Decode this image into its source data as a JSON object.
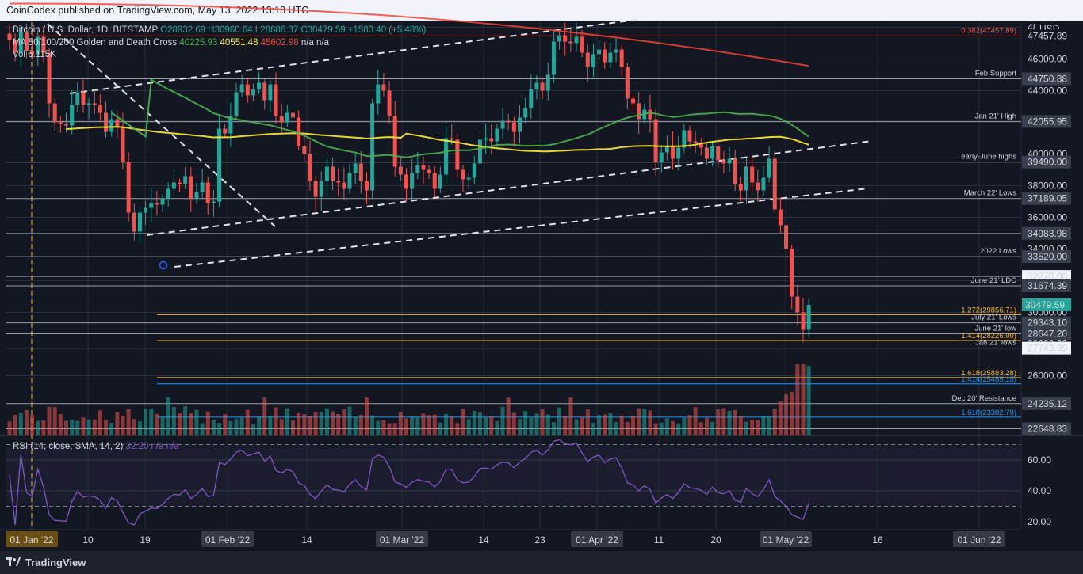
{
  "header": {
    "publisher_text": "CoinCodex published on TradingView.com, May 13, 2022 13:18 UTC"
  },
  "footer": {
    "brand": "TradingView"
  },
  "legend": {
    "symbol": "Bitcoin / U.S. Dollar, 1D, BITSTAMP",
    "open": "O28932.69",
    "high": "H30960.64",
    "low": "L28686.37",
    "close": "C30479.59",
    "change": "+1583.40 (+5.48%)",
    "ma_title": "MA 50/100/200 Golden and Death Cross",
    "ma_values": [
      "40225.93",
      "40551.48",
      "45602.98",
      "n/a",
      "n/a"
    ],
    "vol_title": "Vol 6.115K",
    "rsi_title": "RSI (14, close, SMA, 14, 2)",
    "rsi_values": [
      "32.20",
      "n/a",
      "n/a"
    ]
  },
  "currency": "USD",
  "colors": {
    "bg": "#131722",
    "up": "#26a69a",
    "down": "#ef5350",
    "ma50": "#4caf50",
    "ma100": "#ffeb3b",
    "ma200": "#f44336",
    "rsi": "#7e57c2",
    "fib": "#f5b530",
    "fib_blue": "#2196f3",
    "level": "#b2b5be"
  },
  "chart_data": {
    "type": "candlestick",
    "title": "Bitcoin / U.S. Dollar, 1D, BITSTAMP",
    "y_ticks": [
      26000,
      28000,
      30000,
      32000,
      34000,
      36000,
      38000,
      40000,
      42000,
      44000,
      46000,
      48000
    ],
    "x_ticks": [
      "01 Jan '22",
      "10",
      "19",
      "01 Feb '22",
      "14",
      "01 Mar '22",
      "14",
      "23",
      "01 Apr '22",
      "11",
      "20",
      "01 May '22",
      "16",
      "01 Jun '22"
    ],
    "levels": [
      {
        "name": "0.382(47457.89)",
        "price": 47457.89,
        "label": "47457.89",
        "color": "#ef5350"
      },
      {
        "name": "Feb Support",
        "price": 44750.88,
        "label": "44750.88"
      },
      {
        "name": "Jan 21' High",
        "price": 42055.95,
        "label": "42055.95"
      },
      {
        "name": "early-June highs",
        "price": 39490.0,
        "label": "39490.00"
      },
      {
        "name": "March 22' Lows",
        "price": 37189.05,
        "label": "37189.05"
      },
      {
        "name": "",
        "price": 34983.98,
        "label": "34983.98"
      },
      {
        "name": "2022 Lows",
        "price": 33520.0,
        "label": "33520.00"
      },
      {
        "name": "",
        "price": 32270.0,
        "label": "32270.00"
      },
      {
        "name": "June 21' LDC",
        "price": 31674.39,
        "label": "31674.39"
      },
      {
        "name": "July 21' Lows",
        "price": 29343.1,
        "label": "29343.10"
      },
      {
        "name": "June 21' low",
        "price": 28647.2,
        "label": "28647.20"
      },
      {
        "name": "Jan 21' lows",
        "price": 27743.99,
        "label": "27743.99"
      },
      {
        "name": "Dec 20' Resistance",
        "price": 24235.12,
        "label": "24235.12"
      },
      {
        "name": "",
        "price": 22648.83,
        "label": "22648.83"
      }
    ],
    "fibs": [
      {
        "name": "1.272(29856.71)",
        "price": 29856.71,
        "color": "#f5b530"
      },
      {
        "name": "1.414(28226.00)",
        "price": 28226.0,
        "color": "#f5b530"
      },
      {
        "name": "1.618(25883.28)",
        "price": 25883.28,
        "color": "#f5b530"
      },
      {
        "name": "1.414(25485.15)",
        "price": 25485.15,
        "color": "#2196f3"
      },
      {
        "name": "1.618(23382.79)",
        "price": 23382.79,
        "color": "#2196f3"
      }
    ],
    "last_price": 30479.59,
    "rsi_ticks": [
      20,
      40,
      60
    ],
    "rsi_last": 32.2,
    "closes": [
      47200,
      46400,
      47700,
      46500,
      46300,
      47400,
      46400,
      43200,
      42000,
      41900,
      41800,
      43100,
      43900,
      43100,
      43200,
      43100,
      42600,
      41400,
      42200,
      41700,
      39500,
      36300,
      35100,
      36300,
      36600,
      36900,
      36800,
      37200,
      37800,
      38200,
      38100,
      38600,
      37200,
      37600,
      38200,
      36900,
      37000,
      41600,
      41300,
      42400,
      43900,
      44400,
      43700,
      44100,
      44500,
      43400,
      44400,
      42400,
      42000,
      42600,
      42300,
      40500,
      40000,
      38300,
      37300,
      38300,
      39200,
      38300,
      38200,
      37800,
      38800,
      39400,
      38300,
      37700,
      43200,
      44400,
      44000,
      42400,
      39200,
      38700,
      37800,
      38800,
      39300,
      39000,
      38800,
      37800,
      38700,
      41000,
      40900,
      39000,
      38400,
      38500,
      39400,
      40900,
      41000,
      40800,
      41600,
      42100,
      42000,
      41400,
      42300,
      42900,
      44100,
      44500,
      44000,
      45000,
      47100,
      47500,
      47100,
      47000,
      47400,
      46400,
      45500,
      46300,
      46600,
      45800,
      46400,
      46600,
      45500,
      43500,
      43200,
      42200,
      42800,
      42200,
      39500,
      40100,
      40500,
      39700,
      40400,
      41500,
      40800,
      40700,
      40400,
      39700,
      40500,
      39600,
      39400,
      39700,
      38100,
      37700,
      39200,
      38200,
      37700,
      38500,
      39700,
      36500,
      35500,
      34000,
      31000,
      30000,
      28900,
      30479.59
    ]
  }
}
